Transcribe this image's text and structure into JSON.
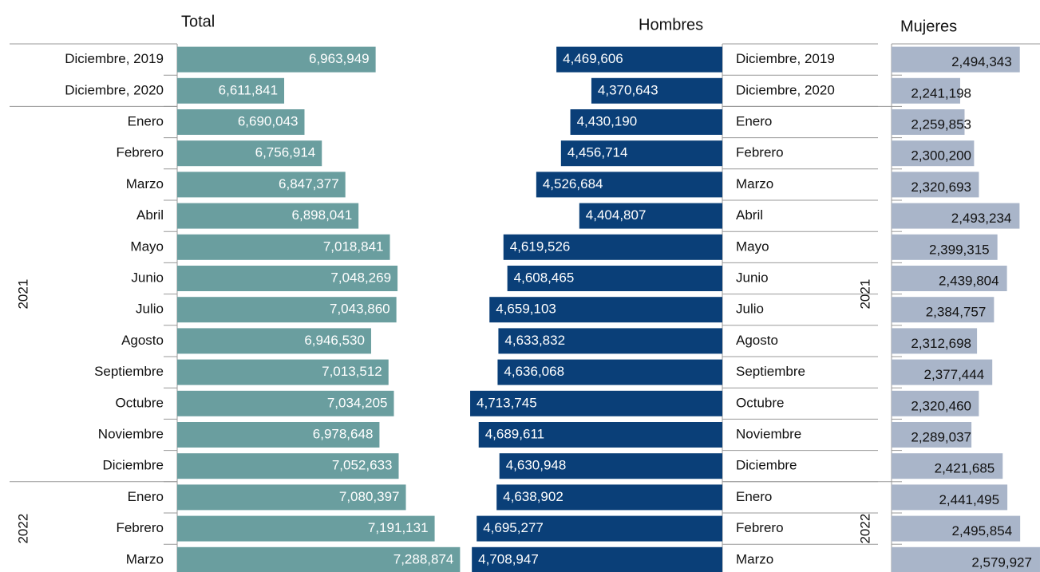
{
  "chart_data": [
    {
      "type": "bar",
      "orientation": "horizontal",
      "title": "Total",
      "color": "#6a9e9f",
      "label_color": "#ffffff",
      "categories": [
        "Diciembre, 2019",
        "Diciembre, 2020",
        "Enero",
        "Febrero",
        "Marzo",
        "Abril",
        "Mayo",
        "Junio",
        "Julio",
        "Agosto",
        "Septiembre",
        "Octubre",
        "Noviembre",
        "Diciembre",
        "Enero",
        "Febrero",
        "Marzo"
      ],
      "group": [
        null,
        null,
        "2021",
        "2021",
        "2021",
        "2021",
        "2021",
        "2021",
        "2021",
        "2021",
        "2021",
        "2021",
        "2021",
        "2021",
        "2022",
        "2022",
        "2022"
      ],
      "values": [
        6963949,
        6611841,
        6690043,
        6756914,
        6847377,
        6898041,
        7018841,
        7048269,
        7043860,
        6946530,
        7013512,
        7034205,
        6978648,
        7052633,
        7080397,
        7191131,
        7288874
      ],
      "value_labels": [
        "6,963,949",
        "6,611,841",
        "6,690,043",
        "6,756,914",
        "6,847,377",
        "6,898,041",
        "7,018,841",
        "7,048,269",
        "7,043,860",
        "6,946,530",
        "7,013,512",
        "7,034,205",
        "6,978,648",
        "7,052,633",
        "7,080,397",
        "7,191,131",
        "7,288,874"
      ],
      "xlim": [
        6200000,
        7300000
      ]
    },
    {
      "type": "bar",
      "orientation": "horizontal",
      "reversed": true,
      "title": "Hombres",
      "color": "#0a3f78",
      "label_color": "#ffffff",
      "categories": [
        "Diciembre, 2019",
        "Diciembre, 2020",
        "Enero",
        "Febrero",
        "Marzo",
        "Abril",
        "Mayo",
        "Junio",
        "Julio",
        "Agosto",
        "Septiembre",
        "Octubre",
        "Noviembre",
        "Diciembre",
        "Enero",
        "Febrero",
        "Marzo"
      ],
      "values": [
        4469606,
        4370643,
        4430190,
        4456714,
        4526684,
        4404807,
        4619526,
        4608465,
        4659103,
        4633832,
        4636068,
        4713745,
        4689611,
        4630948,
        4638902,
        4695277,
        4708947
      ],
      "value_labels": [
        "4,469,606",
        "4,370,643",
        "4,430,190",
        "4,456,714",
        "4,526,684",
        "4,404,807",
        "4,619,526",
        "4,608,465",
        "4,659,103",
        "4,633,832",
        "4,636,068",
        "4,713,745",
        "4,689,611",
        "4,630,948",
        "4,638,902",
        "4,695,277",
        "4,708,947"
      ],
      "xlim": [
        4000000,
        4750000
      ]
    },
    {
      "type": "bar",
      "orientation": "horizontal",
      "title": "Mujeres",
      "color": "#a9b5c9",
      "label_color": "#111111",
      "group": [
        null,
        null,
        "2021",
        "2021",
        "2021",
        "2021",
        "2021",
        "2021",
        "2021",
        "2021",
        "2021",
        "2021",
        "2021",
        "2021",
        "2022",
        "2022",
        "2022"
      ],
      "values": [
        2494343,
        2241198,
        2259853,
        2300200,
        2320693,
        2493234,
        2399315,
        2439804,
        2384757,
        2312698,
        2377444,
        2320460,
        2289037,
        2421685,
        2441495,
        2495854,
        2579927
      ],
      "value_labels": [
        "2,494,343",
        "2,241,198",
        "2,259,853",
        "2,300,200",
        "2,320,693",
        "2,493,234",
        "2,399,315",
        "2,439,804",
        "2,384,757",
        "2,312,698",
        "2,377,444",
        "2,320,460",
        "2,289,037",
        "2,421,685",
        "2,441,495",
        "2,495,854",
        "2,579,927"
      ],
      "xlim": [
        1950000,
        2580000
      ]
    }
  ]
}
